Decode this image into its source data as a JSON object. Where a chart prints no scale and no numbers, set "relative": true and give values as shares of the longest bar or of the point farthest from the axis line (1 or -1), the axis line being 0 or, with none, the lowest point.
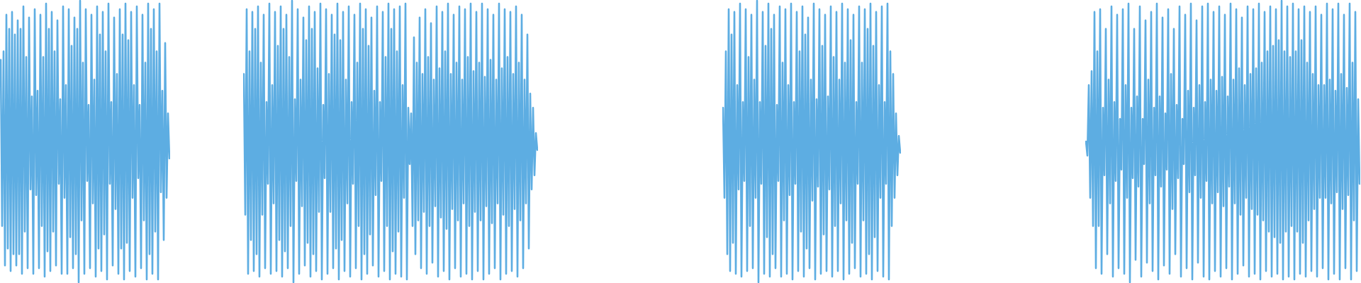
{
  "chart_data": [
    {
      "type": "line",
      "relative": true,
      "color": "#5dade2",
      "categories": [
        null,
        null,
        null,
        null,
        null,
        null,
        null,
        null,
        null,
        null,
        null,
        null,
        null,
        null,
        null,
        null,
        null,
        null,
        null,
        null,
        null,
        null,
        null,
        null,
        null,
        null,
        null,
        null,
        null,
        null,
        null,
        null,
        null,
        null,
        null,
        null,
        null,
        null,
        null,
        null,
        null,
        null,
        null,
        null,
        null,
        null,
        null,
        null,
        null,
        null,
        null,
        null,
        null,
        null,
        null,
        null,
        null,
        null,
        null,
        null,
        null,
        null,
        null,
        null,
        null,
        null,
        null,
        null,
        null,
        null,
        null,
        null,
        null,
        null,
        null,
        null,
        null,
        null,
        null,
        null,
        null,
        null,
        null,
        null,
        null,
        null,
        null,
        null,
        null,
        null,
        null,
        null,
        null,
        null,
        null,
        null,
        null,
        null,
        null,
        null,
        null,
        null,
        null,
        null,
        null,
        null,
        null,
        null,
        null,
        null,
        null,
        null,
        null,
        null,
        null,
        null,
        null,
        null,
        null,
        null
      ],
      "values": [
        0.79,
        0.2,
        0.82,
        0.06,
        0.95,
        0.12,
        0.9,
        0.04,
        0.96,
        0.1,
        0.88,
        0.06,
        0.93,
        0.1,
        0.9,
        0.03,
        0.98,
        0.18,
        0.8,
        0.05,
        0.94,
        0.33,
        0.66,
        0.03,
        0.97,
        0.31,
        0.68,
        0.05,
        0.95,
        0.2,
        0.8,
        0.02,
        0.99,
        0.11,
        0.9,
        0.04,
        0.96,
        0.18,
        0.82,
        0.06,
        0.93,
        0.35,
        0.65,
        0.03,
        0.98,
        0.3,
        0.7,
        0.03,
        0.97,
        0.16,
        0.84,
        0.05,
        0.94,
        0.1,
        0.9,
        0,
        1,
        0.22,
        0.78,
        0.03,
        0.97,
        0.36,
        0.63,
        0.05,
        0.95,
        0.28,
        0.72,
        0.02,
        0.98,
        0.12,
        0.88,
        0.04,
        0.96,
        0.17,
        0.82,
        0.01,
        0.99,
        0.35,
        0.64,
        0.06,
        0.94,
        0.26,
        0.74,
        0.03,
        0.97,
        0.12,
        0.88,
        0.01,
        0.99,
        0.14,
        0.86,
        0.04,
        0.96,
        0.3,
        0.7,
        0.02,
        0.98,
        0.37,
        0.63,
        0.05,
        0.95,
        0.22,
        0.78,
        0.01,
        0.99,
        0.1,
        0.9,
        0.03,
        0.97,
        0.18,
        0.82,
        0.01,
        0.99,
        0.32,
        0.68,
        0.15,
        0.85,
        0.3,
        0.6,
        0.44
      ]
    },
    {
      "type": "line",
      "relative": true,
      "color": "#5dade2",
      "categories": [
        null,
        null,
        null,
        null,
        null,
        null,
        null,
        null,
        null,
        null,
        null,
        null,
        null,
        null,
        null,
        null,
        null,
        null,
        null,
        null,
        null,
        null,
        null,
        null,
        null,
        null,
        null,
        null,
        null,
        null,
        null,
        null,
        null,
        null,
        null,
        null,
        null,
        null,
        null,
        null,
        null,
        null,
        null,
        null,
        null,
        null,
        null,
        null,
        null,
        null,
        null,
        null,
        null,
        null,
        null,
        null,
        null,
        null,
        null,
        null,
        null,
        null,
        null,
        null,
        null,
        null,
        null,
        null,
        null,
        null,
        null,
        null,
        null,
        null,
        null,
        null,
        null,
        null,
        null,
        null,
        null,
        null,
        null,
        null,
        null,
        null,
        null,
        null,
        null,
        null,
        null,
        null,
        null,
        null,
        null,
        null,
        null,
        null,
        null,
        null,
        null,
        null,
        null,
        null,
        null,
        null,
        null,
        null,
        null,
        null,
        null,
        null,
        null,
        null,
        null,
        null,
        null,
        null,
        null,
        null,
        null,
        null,
        null,
        null,
        null,
        null,
        null,
        null,
        null,
        null,
        null,
        null,
        null,
        null,
        null,
        null,
        null,
        null,
        null,
        null,
        null,
        null,
        null,
        null,
        null,
        null,
        null,
        null,
        null,
        null,
        null,
        null,
        null,
        null,
        null,
        null,
        null,
        null,
        null,
        null,
        null,
        null,
        null,
        null,
        null,
        null,
        null,
        null,
        null,
        null,
        null,
        null,
        null,
        null,
        null,
        null,
        null,
        null,
        null,
        null,
        null,
        null,
        null,
        null,
        null,
        null,
        null,
        null,
        null,
        null,
        null,
        null,
        null,
        null,
        null,
        null,
        null,
        null,
        null,
        null,
        null,
        null,
        null,
        null,
        null,
        null,
        null,
        null
      ],
      "values": [
        0.74,
        0.24,
        0.97,
        0.03,
        0.82,
        0.15,
        0.96,
        0.04,
        0.9,
        0.1,
        0.98,
        0.02,
        0.78,
        0.24,
        0.95,
        0.05,
        0.64,
        0.35,
        0.99,
        0.03,
        0.7,
        0.28,
        0.96,
        0.04,
        0.84,
        0.15,
        0.98,
        0.02,
        0.9,
        0.11,
        0.95,
        0.05,
        0.8,
        0.2,
        1,
        0,
        0.65,
        0.36,
        0.97,
        0.03,
        0.72,
        0.27,
        0.94,
        0.06,
        0.86,
        0.14,
        0.98,
        0.02,
        0.9,
        0.1,
        0.96,
        0.04,
        0.76,
        0.25,
        0.99,
        0.01,
        0.63,
        0.37,
        0.97,
        0.03,
        0.74,
        0.25,
        0.95,
        0.05,
        0.88,
        0.12,
        0.99,
        0.01,
        0.86,
        0.15,
        0.96,
        0.04,
        0.72,
        0.28,
        0.98,
        0.02,
        0.64,
        0.35,
        0.95,
        0.05,
        0.78,
        0.2,
        0.99,
        0.01,
        0.9,
        0.1,
        0.97,
        0.03,
        0.84,
        0.17,
        0.94,
        0.06,
        0.68,
        0.31,
        0.98,
        0.02,
        0.64,
        0.36,
        0.96,
        0.04,
        0.8,
        0.2,
        0.99,
        0.01,
        0.9,
        0.11,
        0.97,
        0.03,
        0.82,
        0.18,
        0.98,
        0.02,
        0.7,
        0.3,
        0.99,
        0.01,
        0.62,
        0.42,
        0.6,
        0.2,
        0.87,
        0.1,
        0.78,
        0.22,
        0.94,
        0.05,
        0.74,
        0.25,
        0.97,
        0.03,
        0.8,
        0.2,
        0.92,
        0.07,
        0.72,
        0.27,
        0.98,
        0.02,
        0.76,
        0.23,
        0.96,
        0.04,
        0.82,
        0.19,
        0.99,
        0.01,
        0.74,
        0.26,
        0.95,
        0.05,
        0.78,
        0.22,
        0.98,
        0.02,
        0.72,
        0.28,
        0.97,
        0.03,
        0.8,
        0.2,
        0.99,
        0.01,
        0.75,
        0.25,
        0.96,
        0.04,
        0.78,
        0.22,
        0.99,
        0.01,
        0.73,
        0.27,
        0.97,
        0.03,
        0.79,
        0.21,
        0.95,
        0.05,
        0.72,
        0.28,
        0.99,
        0.01,
        0.76,
        0.24,
        0.97,
        0.03,
        0.8,
        0.2,
        0.96,
        0.04,
        0.74,
        0.26,
        0.98,
        0.02,
        0.78,
        0.22,
        0.95,
        0.05,
        0.72,
        0.28,
        0.88,
        0.12,
        0.67,
        0.33,
        0.62,
        0.38,
        0.53,
        0.47
      ]
    },
    {
      "type": "line",
      "relative": true,
      "color": "#5dade2",
      "categories": [
        null,
        null,
        null,
        null,
        null,
        null,
        null,
        null,
        null,
        null,
        null,
        null,
        null,
        null,
        null,
        null,
        null,
        null,
        null,
        null,
        null,
        null,
        null,
        null,
        null,
        null,
        null,
        null,
        null,
        null,
        null,
        null,
        null,
        null,
        null,
        null,
        null,
        null,
        null,
        null,
        null,
        null,
        null,
        null,
        null,
        null,
        null,
        null,
        null,
        null,
        null,
        null,
        null,
        null,
        null,
        null,
        null,
        null,
        null,
        null,
        null,
        null,
        null,
        null,
        null,
        null,
        null,
        null,
        null,
        null,
        null,
        null,
        null,
        null,
        null,
        null,
        null,
        null,
        null,
        null,
        null,
        null,
        null,
        null,
        null,
        null,
        null,
        null,
        null,
        null,
        null,
        null,
        null,
        null,
        null,
        null,
        null,
        null,
        null,
        null,
        null,
        null,
        null,
        null,
        null,
        null,
        null,
        null,
        null,
        null,
        null,
        null,
        null,
        null,
        null,
        null,
        null,
        null,
        null,
        null,
        null,
        null,
        null,
        null,
        null,
        null
      ],
      "values": [
        0.62,
        0.3,
        0.82,
        0.1,
        0.97,
        0.04,
        0.88,
        0.14,
        0.96,
        0.03,
        0.7,
        0.33,
        0.99,
        0.02,
        0.64,
        0.36,
        0.97,
        0.04,
        0.8,
        0.2,
        0.95,
        0.05,
        0.72,
        0.3,
        1,
        0,
        0.64,
        0.35,
        0.96,
        0.03,
        0.84,
        0.16,
        0.99,
        0.02,
        0.9,
        0.1,
        0.95,
        0.05,
        0.63,
        0.36,
        0.98,
        0.02,
        0.78,
        0.22,
        0.97,
        0.03,
        0.7,
        0.31,
        0.99,
        0.01,
        0.64,
        0.35,
        0.96,
        0.04,
        0.82,
        0.18,
        0.98,
        0.02,
        0.88,
        0.12,
        0.94,
        0.05,
        0.72,
        0.29,
        0.99,
        0.01,
        0.65,
        0.34,
        0.97,
        0.03,
        0.84,
        0.17,
        0.95,
        0.04,
        0.66,
        0.33,
        0.98,
        0.02,
        0.8,
        0.2,
        0.96,
        0.04,
        0.72,
        0.28,
        0.99,
        0.01,
        0.78,
        0.22,
        0.97,
        0.03,
        0.86,
        0.14,
        0.95,
        0.05,
        0.64,
        0.35,
        0.98,
        0.02,
        0.78,
        0.22,
        0.97,
        0.03,
        0.9,
        0.1,
        0.99,
        0.01,
        0.84,
        0.16,
        0.96,
        0.04,
        0.7,
        0.3,
        0.98,
        0.02,
        0.64,
        0.35,
        0.99,
        0.01,
        0.82,
        0.2,
        0.74,
        0.3,
        0.6,
        0.38,
        0.52,
        0.46
      ]
    },
    {
      "type": "line",
      "relative": true,
      "color": "#5dade2",
      "categories": [
        null,
        null,
        null,
        null,
        null,
        null,
        null,
        null,
        null,
        null,
        null,
        null,
        null,
        null,
        null,
        null,
        null,
        null,
        null,
        null,
        null,
        null,
        null,
        null,
        null,
        null,
        null,
        null,
        null,
        null,
        null,
        null,
        null,
        null,
        null,
        null,
        null,
        null,
        null,
        null,
        null,
        null,
        null,
        null,
        null,
        null,
        null,
        null,
        null,
        null,
        null,
        null,
        null,
        null,
        null,
        null,
        null,
        null,
        null,
        null,
        null,
        null,
        null,
        null,
        null,
        null,
        null,
        null,
        null,
        null,
        null,
        null,
        null,
        null,
        null,
        null,
        null,
        null,
        null,
        null,
        null,
        null,
        null,
        null,
        null,
        null,
        null,
        null,
        null,
        null,
        null,
        null,
        null,
        null,
        null,
        null,
        null,
        null,
        null,
        null,
        null,
        null,
        null,
        null,
        null,
        null,
        null,
        null,
        null,
        null,
        null,
        null,
        null,
        null,
        null,
        null,
        null,
        null,
        null,
        null,
        null,
        null,
        null,
        null,
        null,
        null,
        null,
        null,
        null,
        null,
        null,
        null,
        null,
        null,
        null,
        null,
        null,
        null,
        null,
        null,
        null,
        null,
        null,
        null,
        null,
        null,
        null,
        null,
        null,
        null,
        null,
        null,
        null,
        null,
        null,
        null,
        null,
        null,
        null,
        null,
        null,
        null,
        null,
        null,
        null,
        null,
        null,
        null,
        null,
        null,
        null,
        null,
        null,
        null,
        null,
        null,
        null,
        null,
        null,
        null,
        null,
        null,
        null,
        null,
        null,
        null,
        null,
        null,
        null,
        null,
        null,
        null,
        null,
        null
      ],
      "values": [
        0.5,
        0.45,
        0.7,
        0.3,
        0.75,
        0.2,
        0.96,
        0.05,
        0.82,
        0.2,
        0.97,
        0.03,
        0.62,
        0.38,
        0.9,
        0.1,
        0.72,
        0.28,
        0.98,
        0.02,
        0.64,
        0.36,
        0.95,
        0.05,
        0.58,
        0.4,
        0.97,
        0.03,
        0.7,
        0.3,
        0.99,
        0,
        0.62,
        0.37,
        0.9,
        0.08,
        0.66,
        0.34,
        0.98,
        0.02,
        0.58,
        0.42,
        0.93,
        0.07,
        0.72,
        0.28,
        0.96,
        0.04,
        0.62,
        0.38,
        0.99,
        0.01,
        0.66,
        0.34,
        0.94,
        0.06,
        0.6,
        0.4,
        0.97,
        0.03,
        0.74,
        0.26,
        0.9,
        0.1,
        0.63,
        0.37,
        0.98,
        0.02,
        0.58,
        0.42,
        0.95,
        0.05,
        0.68,
        0.32,
        0.99,
        0.01,
        0.62,
        0.38,
        0.93,
        0.07,
        0.7,
        0.3,
        0.98,
        0.02,
        0.64,
        0.36,
        0.99,
        0.01,
        0.72,
        0.28,
        0.96,
        0.04,
        0.68,
        0.32,
        0.98,
        0.02,
        0.73,
        0.27,
        0.95,
        0.05,
        0.66,
        0.34,
        0.99,
        0.01,
        0.72,
        0.28,
        0.97,
        0.03,
        0.76,
        0.24,
        0.94,
        0.06,
        0.7,
        0.3,
        0.98,
        0.02,
        0.74,
        0.26,
        0.97,
        0.03,
        0.76,
        0.24,
        0.99,
        0.01,
        0.78,
        0.22,
        0.96,
        0.04,
        0.82,
        0.18,
        0.98,
        0.02,
        0.84,
        0.16,
        0.97,
        0.03,
        0.86,
        0.14,
        1,
        0.01,
        0.82,
        0.18,
        0.98,
        0.02,
        0.8,
        0.2,
        0.99,
        0.01,
        0.82,
        0.18,
        0.97,
        0.03,
        0.86,
        0.14,
        0.98,
        0.02,
        0.78,
        0.22,
        0.96,
        0.04,
        0.74,
        0.26,
        0.98,
        0.02,
        0.7,
        0.3,
        0.95,
        0.05,
        0.7,
        0.3,
        0.99,
        0.01,
        0.72,
        0.28,
        0.97,
        0.03,
        0.68,
        0.32,
        0.99,
        0.01,
        0.74,
        0.26,
        0.95,
        0.05,
        0.69,
        0.31,
        0.99,
        0.01,
        0.78,
        0.22,
        0.96,
        0.04,
        0.65,
        0.35
      ]
    }
  ]
}
